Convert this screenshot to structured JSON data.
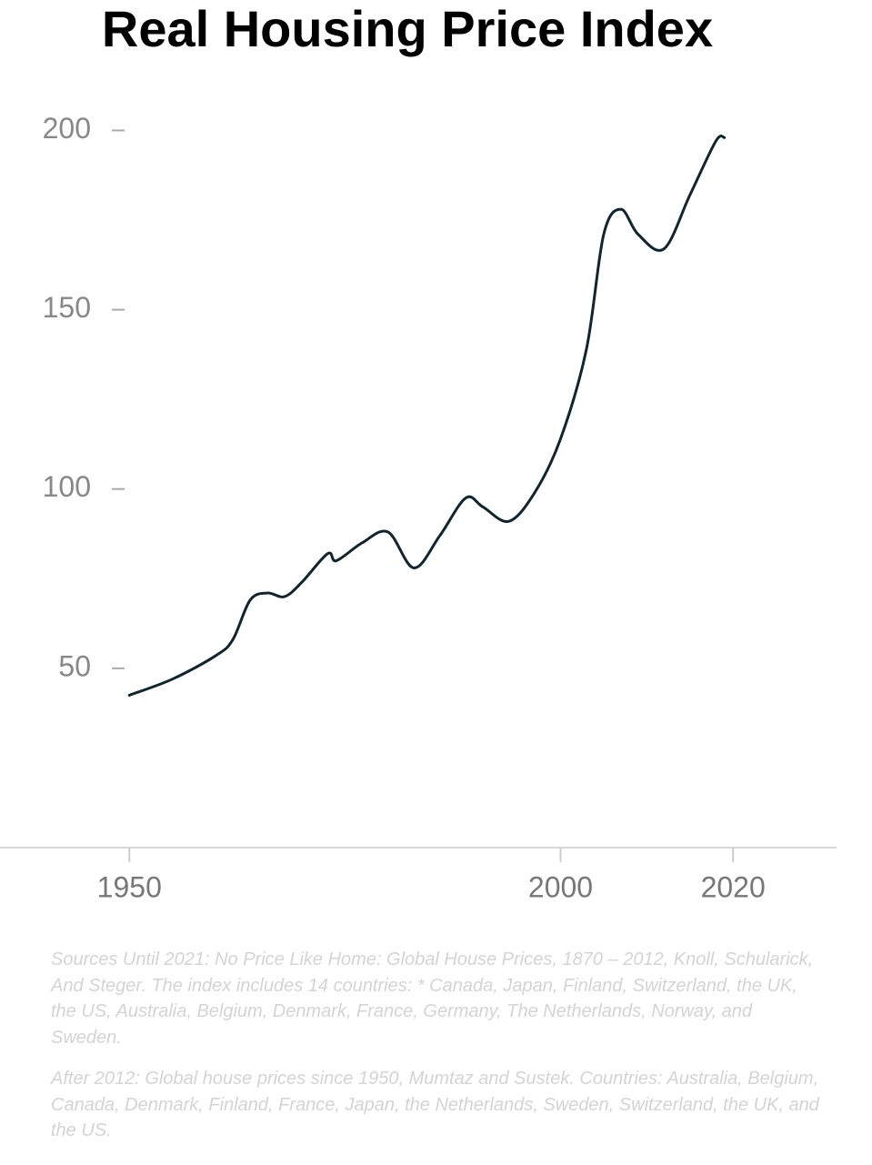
{
  "chart_data": {
    "type": "line",
    "title": "Real Housing Price Index",
    "x": [
      1950,
      1955,
      1960,
      1962,
      1964,
      1966,
      1968,
      1970,
      1973,
      1974,
      1977,
      1980,
      1983,
      1986,
      1989,
      1991,
      1994,
      1997,
      2000,
      2003,
      2005,
      2007,
      2009,
      2012,
      2015,
      2018,
      2019
    ],
    "series": [
      {
        "name": "Real Housing Price Index",
        "color": "#0f2530",
        "values": [
          42.5,
          47,
          53.5,
          58,
          69,
          71,
          70,
          74,
          82,
          80,
          85,
          88,
          78,
          87,
          97.5,
          95,
          91,
          99,
          114,
          139,
          171,
          178,
          171,
          167,
          182,
          197,
          198
        ]
      }
    ],
    "xlim": [
      1935,
      2032
    ],
    "xticks": [
      1950,
      2000,
      2020
    ],
    "ylim": [
      0,
      210
    ],
    "yticks": [
      50,
      100,
      150,
      200
    ],
    "grid": false,
    "notes": [
      "Sources Until 2021: No Price Like Home: Global House Prices, 1870 – 2012, Knoll, Schularick, And Steger. The index includes 14 countries: * Canada, Japan, Finland, Switzerland, the UK, the US, Australia, Belgium, Denmark, France, Germany, The Netherlands, Norway, and Sweden.",
      "After 2012: Global house prices since 1950, Mumtaz and Sustek. Countries: Australia, Belgium, Canada, Denmark, Finland, France, Japan, the Netherlands, Sweden, Switzerland, the UK, and the US."
    ]
  }
}
